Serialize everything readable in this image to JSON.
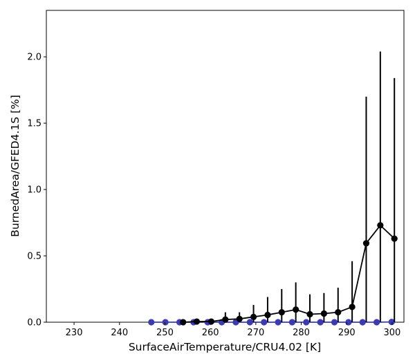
{
  "chart_data": {
    "type": "line",
    "xlabel": "SurfaceAirTemperature/CRU4.02 [K]",
    "ylabel": "BurnedArea/GFED4.1S [%]",
    "xlim": [
      223.9,
      302.6
    ],
    "ylim": [
      0.0,
      2.35
    ],
    "xticks": [
      230,
      240,
      250,
      260,
      270,
      280,
      290,
      300
    ],
    "xtick_labels": [
      "230",
      "240",
      "250",
      "260",
      "270",
      "280",
      "290",
      "300"
    ],
    "yticks": [
      0.0,
      0.5,
      1.0,
      1.5,
      2.0
    ],
    "ytick_labels": [
      "0.0",
      "0.5",
      "1.0",
      "1.5",
      "2.0"
    ],
    "grid": false,
    "series": [
      {
        "color": "#000000",
        "marker": "circle",
        "points": [
          {
            "x": 254.0,
            "y": 0.0,
            "lo": 0.0,
            "hi": 0.012
          },
          {
            "x": 257.0,
            "y": 0.005,
            "lo": 0.0,
            "hi": 0.025
          },
          {
            "x": 260.2,
            "y": 0.005,
            "lo": 0.0,
            "hi": 0.02
          },
          {
            "x": 263.3,
            "y": 0.02,
            "lo": 0.0,
            "hi": 0.075
          },
          {
            "x": 266.4,
            "y": 0.025,
            "lo": 0.0,
            "hi": 0.075
          },
          {
            "x": 269.5,
            "y": 0.04,
            "lo": 0.0,
            "hi": 0.13
          },
          {
            "x": 272.6,
            "y": 0.055,
            "lo": 0.0,
            "hi": 0.19
          },
          {
            "x": 275.7,
            "y": 0.075,
            "lo": 0.0,
            "hi": 0.25
          },
          {
            "x": 278.8,
            "y": 0.095,
            "lo": 0.0,
            "hi": 0.3
          },
          {
            "x": 281.9,
            "y": 0.06,
            "lo": 0.0,
            "hi": 0.21
          },
          {
            "x": 285.0,
            "y": 0.065,
            "lo": 0.0,
            "hi": 0.22
          },
          {
            "x": 288.1,
            "y": 0.075,
            "lo": 0.0,
            "hi": 0.26
          },
          {
            "x": 291.2,
            "y": 0.115,
            "lo": 0.0,
            "hi": 0.46
          },
          {
            "x": 294.3,
            "y": 0.595,
            "lo": 0.0,
            "hi": 1.7
          },
          {
            "x": 297.4,
            "y": 0.73,
            "lo": 0.0,
            "hi": 2.04
          },
          {
            "x": 300.5,
            "y": 0.63,
            "lo": 0.0,
            "hi": 1.84
          }
        ]
      },
      {
        "color": "#3b3bb3",
        "marker": "circle",
        "points": [
          {
            "x": 247.0,
            "y": 0.0
          },
          {
            "x": 250.1,
            "y": 0.0
          },
          {
            "x": 253.2,
            "y": 0.0
          },
          {
            "x": 256.3,
            "y": 0.0
          },
          {
            "x": 259.4,
            "y": 0.0
          },
          {
            "x": 262.5,
            "y": 0.0
          },
          {
            "x": 265.6,
            "y": 0.0
          },
          {
            "x": 268.7,
            "y": 0.0
          },
          {
            "x": 271.8,
            "y": 0.0
          },
          {
            "x": 274.9,
            "y": 0.0
          },
          {
            "x": 278.0,
            "y": 0.0
          },
          {
            "x": 281.1,
            "y": 0.0
          },
          {
            "x": 284.2,
            "y": 0.0
          },
          {
            "x": 287.3,
            "y": 0.0
          },
          {
            "x": 290.4,
            "y": 0.0
          },
          {
            "x": 293.5,
            "y": 0.0
          },
          {
            "x": 296.6,
            "y": 0.0
          },
          {
            "x": 299.9,
            "y": 0.002
          }
        ]
      }
    ]
  }
}
